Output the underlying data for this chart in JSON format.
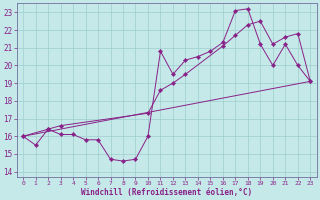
{
  "xlabel": "Windchill (Refroidissement éolien,°C)",
  "ylabel": "",
  "bg_color": "#c5e8e8",
  "grid_color": "#9ecece",
  "line_color": "#882288",
  "xlim": [
    -0.5,
    23.5
  ],
  "ylim": [
    13.7,
    23.5
  ],
  "xticks": [
    0,
    1,
    2,
    3,
    4,
    5,
    6,
    7,
    8,
    9,
    10,
    11,
    12,
    13,
    14,
    15,
    16,
    17,
    18,
    19,
    20,
    21,
    22,
    23
  ],
  "yticks": [
    14,
    15,
    16,
    17,
    18,
    19,
    20,
    21,
    22,
    23
  ],
  "line1_x": [
    0,
    1,
    2,
    3,
    4,
    5,
    6,
    7,
    8,
    9,
    10,
    11,
    12,
    13,
    14,
    15,
    16,
    17,
    18,
    19,
    20,
    21,
    22,
    23
  ],
  "line1_y": [
    16.0,
    15.5,
    16.4,
    16.1,
    16.1,
    15.8,
    15.8,
    14.7,
    14.6,
    14.7,
    16.0,
    20.8,
    19.5,
    20.3,
    20.5,
    20.8,
    21.3,
    23.1,
    23.2,
    21.2,
    20.0,
    21.2,
    20.0,
    19.1
  ],
  "line2_x": [
    0,
    2,
    3,
    10,
    11,
    12,
    13,
    16,
    17,
    18,
    19,
    20,
    21,
    22,
    23
  ],
  "line2_y": [
    16.0,
    16.4,
    16.6,
    17.3,
    18.6,
    19.0,
    19.5,
    21.1,
    21.7,
    22.3,
    22.5,
    21.2,
    21.6,
    21.8,
    19.1
  ],
  "line3_x": [
    0,
    23
  ],
  "line3_y": [
    16.0,
    19.1
  ]
}
